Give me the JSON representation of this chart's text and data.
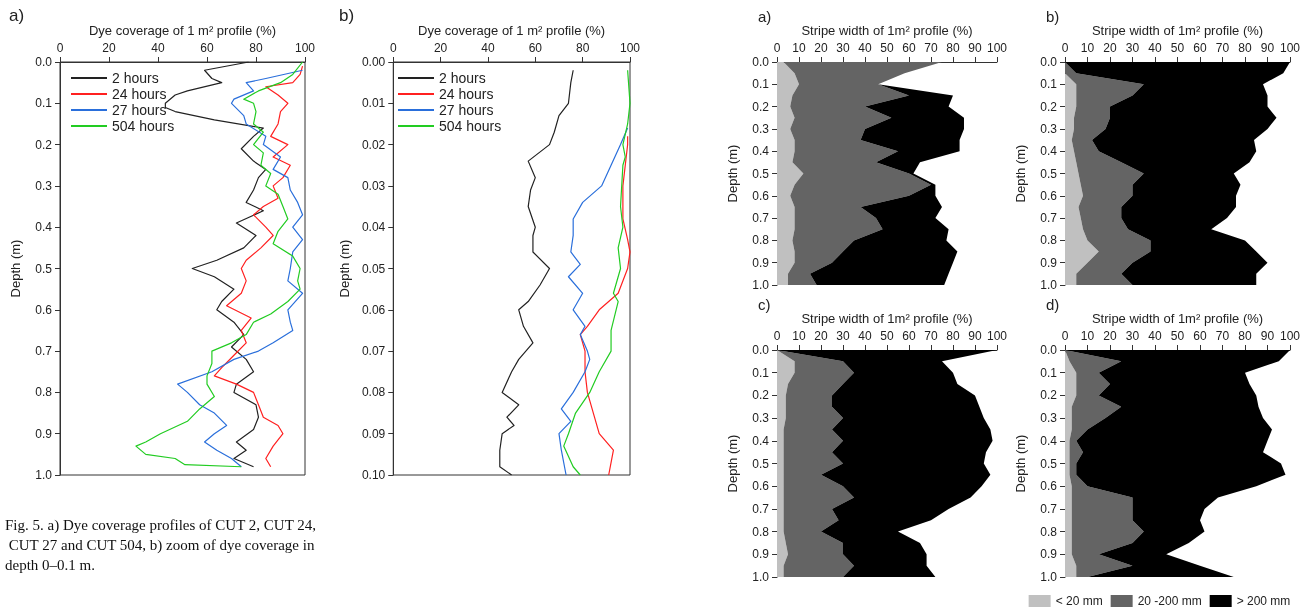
{
  "chart_data": [
    {
      "type": "line",
      "title": "a)",
      "xlabel": "Dye coverage of 1 m² profile (%)",
      "ylabel": "Depth (m)",
      "orientation": "horizontal",
      "xlim": [
        0,
        100
      ],
      "xticks": [
        0,
        20,
        40,
        60,
        80,
        100
      ],
      "ylim": [
        1,
        0
      ],
      "yticks": [
        {
          "value": 0,
          "label": "0.0"
        },
        0.1,
        0.2,
        0.3,
        0.4,
        0.5,
        0.6,
        0.7,
        0.8,
        0.9,
        {
          "value": 1,
          "label": "1.0"
        }
      ],
      "legend": "top left",
      "annotations": [
        "Fig. 5. a) Dye coverage profiles of CUT 2, CUT 24, CUT 27 and CUT 504, b) zoom of dye coverage in depth 0–0.1 m."
      ],
      "series": [
        {
          "name": "2 hours",
          "color": "#222222",
          "x": [
            0,
            0.02,
            0.04,
            0.05,
            0.07,
            0.08,
            0.1,
            0.11,
            0.12,
            0.14,
            0.16,
            0.18,
            0.21,
            0.24,
            0.26,
            0.28,
            0.31,
            0.34,
            0.36,
            0.39,
            0.42,
            0.45,
            0.48,
            0.5,
            0.52,
            0.55,
            0.58,
            0.6,
            0.63,
            0.66,
            0.69,
            0.72,
            0.75,
            0.78,
            0.8,
            0.83,
            0.86,
            0.89,
            0.92,
            0.94,
            0.96,
            0.98
          ],
          "values": [
            77,
            59,
            62,
            66,
            52,
            47,
            43,
            43,
            47,
            63,
            83,
            79,
            74,
            79,
            84,
            81,
            79,
            76,
            83,
            72,
            80,
            75,
            64,
            54,
            63,
            71,
            66,
            64,
            71,
            75,
            70,
            76,
            79,
            72,
            71,
            80,
            81,
            79,
            72,
            76,
            71,
            79
          ]
        },
        {
          "name": "24 hours",
          "color": "#ff2020",
          "x": [
            0.01,
            0.03,
            0.05,
            0.06,
            0.08,
            0.1,
            0.12,
            0.15,
            0.18,
            0.2,
            0.23,
            0.25,
            0.28,
            0.3,
            0.33,
            0.35,
            0.37,
            0.4,
            0.42,
            0.45,
            0.48,
            0.5,
            0.53,
            0.56,
            0.59,
            0.62,
            0.65,
            0.68,
            0.71,
            0.74,
            0.76,
            0.78,
            0.8,
            0.83,
            0.86,
            0.88,
            0.9,
            0.93,
            0.96,
            0.98
          ],
          "values": [
            99,
            98,
            95,
            84,
            89,
            93,
            90,
            89,
            86,
            93,
            87,
            94,
            91,
            87,
            89,
            83,
            79,
            84,
            87,
            82,
            76,
            74,
            76,
            74,
            68,
            78,
            74,
            76,
            71,
            66,
            63,
            72,
            79,
            81,
            83,
            89,
            91,
            87,
            84,
            86
          ]
        },
        {
          "name": "27 hours",
          "color": "#2a6fdb",
          "x": [
            0.02,
            0.04,
            0.05,
            0.07,
            0.09,
            0.1,
            0.13,
            0.15,
            0.18,
            0.2,
            0.23,
            0.26,
            0.28,
            0.31,
            0.34,
            0.37,
            0.4,
            0.43,
            0.46,
            0.5,
            0.53,
            0.56,
            0.6,
            0.63,
            0.65,
            0.68,
            0.7,
            0.72,
            0.75,
            0.78,
            0.8,
            0.83,
            0.85,
            0.88,
            0.9,
            0.92,
            0.94,
            0.96,
            0.98
          ],
          "values": [
            99,
            84,
            76,
            79,
            71,
            70,
            75,
            76,
            84,
            83,
            90,
            87,
            93,
            94,
            97,
            99,
            95,
            99,
            95,
            94,
            93,
            99,
            93,
            94,
            95,
            87,
            81,
            71,
            62,
            48,
            52,
            57,
            63,
            68,
            63,
            59,
            64,
            70,
            74
          ]
        },
        {
          "name": "504 hours",
          "color": "#22cc22",
          "x": [
            0,
            0.03,
            0.05,
            0.07,
            0.09,
            0.1,
            0.12,
            0.15,
            0.17,
            0.2,
            0.22,
            0.25,
            0.27,
            0.3,
            0.32,
            0.35,
            0.38,
            0.41,
            0.44,
            0.47,
            0.5,
            0.53,
            0.55,
            0.58,
            0.61,
            0.63,
            0.66,
            0.68,
            0.7,
            0.73,
            0.76,
            0.78,
            0.81,
            0.84,
            0.87,
            0.9,
            0.92,
            0.93,
            0.95,
            0.96,
            0.975,
            0.98
          ],
          "values": [
            99,
            95,
            90,
            81,
            75,
            79,
            80,
            79,
            83,
            79,
            83,
            82,
            86,
            84,
            89,
            91,
            93,
            89,
            87,
            95,
            98,
            97,
            98,
            93,
            86,
            79,
            76,
            70,
            62,
            62,
            60,
            60,
            63,
            57,
            52,
            41,
            35,
            31,
            35,
            47,
            51,
            74
          ]
        }
      ]
    },
    {
      "type": "line",
      "title": "b)",
      "xlabel": "Dye coverage of 1 m² profile (%)",
      "ylabel": "Depth (m)",
      "orientation": "horizontal",
      "xlim": [
        0,
        100
      ],
      "xticks": [
        0,
        20,
        40,
        60,
        80,
        100
      ],
      "ylim": [
        0.1,
        0
      ],
      "yticks": [
        {
          "value": 0,
          "label": "0.00"
        },
        0.01,
        0.02,
        0.03,
        0.04,
        0.05,
        0.06,
        0.07,
        0.08,
        0.09,
        {
          "value": 0.1,
          "label": "0.10"
        }
      ],
      "legend": "top left",
      "series": [
        {
          "name": "2 hours",
          "color": "#222222",
          "x": [
            0.002,
            0.005,
            0.01,
            0.013,
            0.017,
            0.02,
            0.024,
            0.028,
            0.031,
            0.035,
            0.04,
            0.042,
            0.046,
            0.05,
            0.054,
            0.058,
            0.06,
            0.064,
            0.068,
            0.072,
            0.075,
            0.08,
            0.083,
            0.086,
            0.088,
            0.09,
            0.094,
            0.098,
            0.1
          ],
          "values": [
            76,
            75,
            74,
            70,
            68,
            66,
            57,
            60,
            58,
            57,
            60,
            59,
            59,
            66,
            62,
            57,
            53,
            55,
            59,
            53,
            50,
            46,
            53,
            48,
            51,
            46,
            45,
            45,
            50
          ]
        },
        {
          "name": "24 hours",
          "color": "#ff2020",
          "x": [
            0.018,
            0.02,
            0.025,
            0.03,
            0.038,
            0.043,
            0.046,
            0.05,
            0.056,
            0.06,
            0.064,
            0.066,
            0.07,
            0.075,
            0.08,
            0.086,
            0.09,
            0.094,
            0.1
          ],
          "values": [
            99,
            99,
            98,
            97,
            97,
            99,
            100,
            99,
            95,
            87,
            82,
            79,
            81,
            81,
            82,
            85,
            87,
            93,
            91
          ]
        },
        {
          "name": "27 hours",
          "color": "#2a6fdb",
          "x": [
            0.016,
            0.02,
            0.025,
            0.03,
            0.034,
            0.038,
            0.042,
            0.046,
            0.049,
            0.052,
            0.056,
            0.06,
            0.064,
            0.066,
            0.07,
            0.072,
            0.075,
            0.08,
            0.084,
            0.087,
            0.09,
            0.094,
            0.1
          ],
          "values": [
            99,
            96,
            92,
            88,
            80,
            76,
            76,
            75,
            79,
            74,
            80,
            76,
            81,
            79,
            82,
            83,
            81,
            76,
            71,
            75,
            70,
            71,
            73
          ]
        },
        {
          "name": "504 hours",
          "color": "#22cc22",
          "x": [
            0.002,
            0.01,
            0.015,
            0.02,
            0.023,
            0.025,
            0.035,
            0.04,
            0.045,
            0.05,
            0.056,
            0.058,
            0.065,
            0.07,
            0.075,
            0.08,
            0.085,
            0.09,
            0.093,
            0.098,
            0.1
          ],
          "values": [
            99,
            100,
            99,
            97,
            98,
            97,
            96,
            97,
            95,
            96,
            93,
            95,
            92,
            92,
            87,
            83,
            77,
            74,
            72,
            76,
            79
          ]
        }
      ]
    },
    {
      "type": "area",
      "stacked": true,
      "title": "a)",
      "xlabel": "Stripe width of 1m² profile (%)",
      "ylabel": "Depth (m)",
      "orientation": "horizontal",
      "xlim": [
        0,
        100
      ],
      "xticks": [
        0,
        10,
        20,
        30,
        40,
        50,
        60,
        70,
        80,
        90,
        100
      ],
      "ylim": [
        1,
        0
      ],
      "yticks": [
        {
          "value": 0,
          "label": "0.0"
        },
        0.1,
        0.2,
        0.3,
        0.4,
        0.5,
        0.6,
        0.7,
        0.8,
        0.9,
        {
          "value": 1,
          "label": "1.0"
        }
      ],
      "x": [
        0,
        0.05,
        0.1,
        0.15,
        0.2,
        0.25,
        0.3,
        0.35,
        0.4,
        0.45,
        0.5,
        0.55,
        0.6,
        0.65,
        0.7,
        0.75,
        0.8,
        0.85,
        0.9,
        0.95,
        1
      ],
      "series": [
        {
          "color": "#c0c0c0",
          "values": [
            3,
            8,
            10,
            7,
            6,
            8,
            6,
            8,
            8,
            7,
            12,
            8,
            6,
            8,
            8,
            8,
            7,
            8,
            8,
            5,
            5
          ]
        },
        {
          "color": "#646464",
          "values": [
            72,
            50,
            36,
            53,
            34,
            44,
            34,
            30,
            47,
            38,
            48,
            62,
            54,
            30,
            37,
            40,
            28,
            22,
            17,
            10,
            13
          ]
        },
        {
          "color": "#000000",
          "values": [
            0,
            0,
            0,
            20,
            38,
            33,
            45,
            45,
            28,
            20,
            2,
            2,
            12,
            37,
            27,
            30,
            42,
            52,
            55,
            63,
            58
          ]
        }
      ]
    },
    {
      "type": "area",
      "stacked": true,
      "title": "b)",
      "xlabel": "Stripe width of 1m² profile (%)",
      "ylabel": "Depth (m)",
      "orientation": "horizontal",
      "xlim": [
        0,
        100
      ],
      "xticks": [
        0,
        10,
        20,
        30,
        40,
        50,
        60,
        70,
        80,
        90,
        100
      ],
      "ylim": [
        1,
        0
      ],
      "yticks": [
        {
          "value": 0,
          "label": "0.0"
        },
        0.1,
        0.2,
        0.3,
        0.4,
        0.5,
        0.6,
        0.7,
        0.8,
        0.9,
        {
          "value": 1,
          "label": "1.0"
        }
      ],
      "x": [
        0,
        0.05,
        0.1,
        0.15,
        0.2,
        0.25,
        0.3,
        0.35,
        0.4,
        0.45,
        0.5,
        0.55,
        0.6,
        0.65,
        0.7,
        0.75,
        0.8,
        0.85,
        0.9,
        0.95,
        1
      ],
      "series": [
        {
          "color": "#c0c0c0",
          "values": [
            0,
            0,
            5,
            5,
            5,
            4,
            4,
            3,
            4,
            5,
            6,
            7,
            8,
            6,
            7,
            8,
            10,
            15,
            10,
            5,
            5
          ]
        },
        {
          "color": "#646464",
          "values": [
            0,
            5,
            30,
            25,
            15,
            16,
            14,
            9,
            11,
            20,
            29,
            23,
            22,
            19,
            18,
            20,
            28,
            23,
            20,
            20,
            25
          ]
        },
        {
          "color": "#000000",
          "values": [
            100,
            92,
            53,
            60,
            70,
            74,
            72,
            72,
            70,
            57,
            40,
            48,
            46,
            51,
            47,
            37,
            42,
            47,
            60,
            60,
            55
          ]
        }
      ]
    },
    {
      "type": "area",
      "stacked": true,
      "title": "c)",
      "xlabel": "Stripe width of 1m² profile (%)",
      "ylabel": "Depth (m)",
      "orientation": "horizontal",
      "xlim": [
        0,
        100
      ],
      "xticks": [
        0,
        10,
        20,
        30,
        40,
        50,
        60,
        70,
        80,
        90,
        100
      ],
      "ylim": [
        1,
        0
      ],
      "yticks": [
        {
          "value": 0,
          "label": "0.0"
        },
        0.1,
        0.2,
        0.3,
        0.4,
        0.5,
        0.6,
        0.7,
        0.8,
        0.9,
        {
          "value": 1,
          "label": "1.0"
        }
      ],
      "x": [
        0,
        0.05,
        0.1,
        0.15,
        0.2,
        0.25,
        0.3,
        0.35,
        0.4,
        0.45,
        0.5,
        0.55,
        0.6,
        0.65,
        0.7,
        0.75,
        0.8,
        0.85,
        0.9,
        0.95,
        1
      ],
      "series": [
        {
          "color": "#c0c0c0",
          "values": [
            0,
            8,
            8,
            5,
            4,
            4,
            4,
            3,
            3,
            3,
            3,
            3,
            3,
            3,
            3,
            3,
            3,
            4,
            5,
            3,
            3
          ]
        },
        {
          "color": "#646464",
          "values": [
            0,
            22,
            27,
            25,
            21,
            21,
            26,
            22,
            27,
            22,
            27,
            17,
            27,
            32,
            22,
            25,
            17,
            26,
            25,
            32,
            27
          ]
        },
        {
          "color": "#000000",
          "values": [
            100,
            45,
            45,
            52,
            65,
            67,
            64,
            72,
            68,
            70,
            64,
            77,
            63,
            53,
            53,
            42,
            35,
            35,
            38,
            33,
            42
          ]
        }
      ]
    },
    {
      "type": "area",
      "stacked": true,
      "title": "d)",
      "xlabel": "Stripe width of 1m² profile (%)",
      "ylabel": "Depth (m)",
      "orientation": "horizontal",
      "xlim": [
        0,
        100
      ],
      "xticks": [
        0,
        10,
        20,
        30,
        40,
        50,
        60,
        70,
        80,
        90,
        100
      ],
      "ylim": [
        1,
        0
      ],
      "yticks": [
        {
          "value": 0,
          "label": "0.0"
        },
        0.1,
        0.2,
        0.3,
        0.4,
        0.5,
        0.6,
        0.7,
        0.8,
        0.9,
        {
          "value": 1,
          "label": "1.0"
        }
      ],
      "x": [
        0,
        0.05,
        0.1,
        0.15,
        0.2,
        0.25,
        0.3,
        0.35,
        0.4,
        0.45,
        0.5,
        0.55,
        0.6,
        0.65,
        0.7,
        0.75,
        0.8,
        0.85,
        0.9,
        0.95,
        1
      ],
      "legend": "bottom",
      "series": [
        {
          "name": "< 20 mm",
          "color": "#c0c0c0",
          "values": [
            0,
            2,
            5,
            5,
            5,
            3,
            3,
            3,
            2,
            2,
            2,
            2,
            3,
            3,
            3,
            3,
            3,
            3,
            3,
            5,
            5
          ]
        },
        {
          "name": "20 -200 mm",
          "color": "#646464",
          "values": [
            0,
            23,
            10,
            15,
            10,
            22,
            15,
            7,
            3,
            6,
            3,
            3,
            7,
            27,
            27,
            27,
            32,
            27,
            12,
            25,
            5
          ]
        },
        {
          "name": "> 200 mm",
          "color": "#000000",
          "values": [
            100,
            70,
            65,
            62,
            70,
            61,
            70,
            82,
            85,
            80,
            91,
            93,
            75,
            38,
            32,
            30,
            27,
            25,
            30,
            30,
            65
          ]
        }
      ]
    }
  ]
}
